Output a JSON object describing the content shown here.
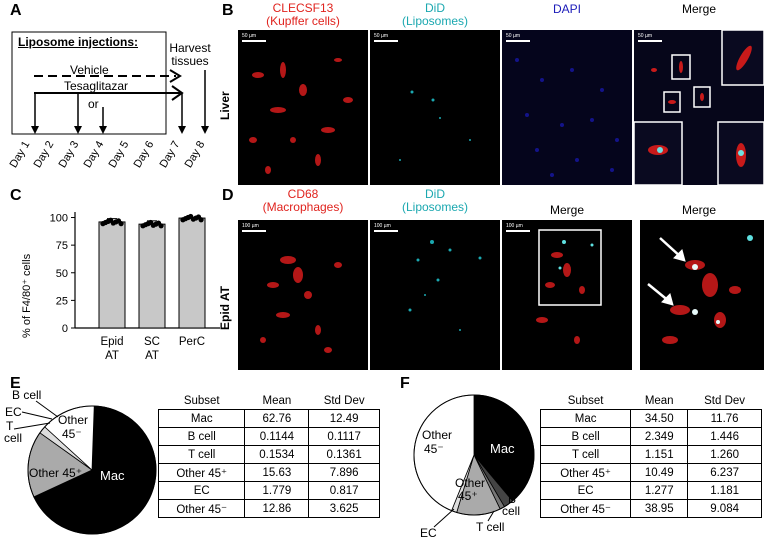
{
  "panels": {
    "a": "A",
    "b": "B",
    "c": "C",
    "d": "D",
    "e": "E",
    "f": "F"
  },
  "panel_a": {
    "title": "Liposome injections:",
    "vehicle": "Vehicle",
    "tesaglitazar": "Tesaglitazar",
    "or": "or",
    "harvest": "Harvest tissues",
    "days": [
      "Day 1",
      "Day 2",
      "Day 3",
      "Day 4",
      "Day 5",
      "Day 6",
      "Day 7",
      "Day 8"
    ]
  },
  "panel_b": {
    "col1_line1": "CLECSF13",
    "col1_line2": "(Kupffer cells)",
    "col2_line1": "DiD",
    "col2_line2": "(Liposomes)",
    "col3": "DAPI",
    "col4": "Merge",
    "row_label": "Liver",
    "scalebar": "50 µm",
    "colors": {
      "red": "#e0231e",
      "cyan": "#1ba8b0",
      "blue": "#1a1ab8"
    }
  },
  "panel_c": {
    "ylabel": "% of F4/80⁺ cells"
  },
  "panel_d": {
    "col1_line1": "CD68",
    "col1_line2": "(Macrophages)",
    "col2_line1": "DiD",
    "col2_line2": "(Liposomes)",
    "col3": "Merge",
    "col4": "Merge",
    "row_label": "Epid AT",
    "scalebar": "100 µm"
  },
  "chart_data": [
    {
      "type": "bar",
      "categories": [
        "Epid\nAT",
        "SC\nAT",
        "PerC"
      ],
      "values": [
        96,
        94,
        99.5
      ],
      "errors": [
        3,
        3,
        0.5
      ],
      "ylabel": "% of F4/80⁺ cells",
      "yticks": [
        0,
        25,
        50,
        75,
        100
      ],
      "ylim": [
        0,
        105
      ]
    },
    {
      "type": "pie",
      "labels": [
        "Mac",
        "B cell",
        "T cell",
        "Other 45⁺",
        "EC",
        "Other 45⁻"
      ],
      "values": [
        62.76,
        0.1144,
        0.1534,
        15.63,
        1.779,
        12.86
      ],
      "colors": [
        "#000000",
        "#555555",
        "#666666",
        "#aaaaaa",
        "#dddddd",
        "#ffffff"
      ]
    },
    {
      "type": "pie",
      "labels": [
        "Mac",
        "B cell",
        "T cell",
        "Other 45⁺",
        "EC",
        "Other 45⁻"
      ],
      "values": [
        34.5,
        2.349,
        1.151,
        10.49,
        1.277,
        38.95
      ],
      "colors": [
        "#000000",
        "#444444",
        "#777777",
        "#aaaaaa",
        "#dddddd",
        "#ffffff"
      ]
    }
  ],
  "pie_labels_e": {
    "mac": "Mac",
    "other45p": "Other 45⁺",
    "other45m_1": "Other",
    "other45m_2": "45⁻",
    "b": "B cell",
    "ec": "EC",
    "t1": "T",
    "t2": "cell"
  },
  "pie_labels_f": {
    "mac": "Mac",
    "other45m_1": "Other",
    "other45m_2": "45⁻",
    "other45p_1": "Other",
    "other45p_2": "45⁺",
    "b1": "B",
    "b2": "cell",
    "ec": "EC",
    "t": "T cell"
  },
  "table_e": {
    "headers": [
      "Subset",
      "Mean",
      "Std Dev"
    ],
    "rows": [
      [
        "Mac",
        "62.76",
        "12.49"
      ],
      [
        "B cell",
        "0.1144",
        "0.1117"
      ],
      [
        "T cell",
        "0.1534",
        "0.1361"
      ],
      [
        "Other 45⁺",
        "15.63",
        "7.896"
      ],
      [
        "EC",
        "1.779",
        "0.817"
      ],
      [
        "Other 45⁻",
        "12.86",
        "3.625"
      ]
    ]
  },
  "table_f": {
    "headers": [
      "Subset",
      "Mean",
      "Std Dev"
    ],
    "rows": [
      [
        "Mac",
        "34.50",
        "11.76"
      ],
      [
        "B cell",
        "2.349",
        "1.446"
      ],
      [
        "T cell",
        "1.151",
        "1.260"
      ],
      [
        "Other 45⁺",
        "10.49",
        "6.237"
      ],
      [
        "EC",
        "1.277",
        "1.181"
      ],
      [
        "Other 45⁻",
        "38.95",
        "9.084"
      ]
    ]
  }
}
